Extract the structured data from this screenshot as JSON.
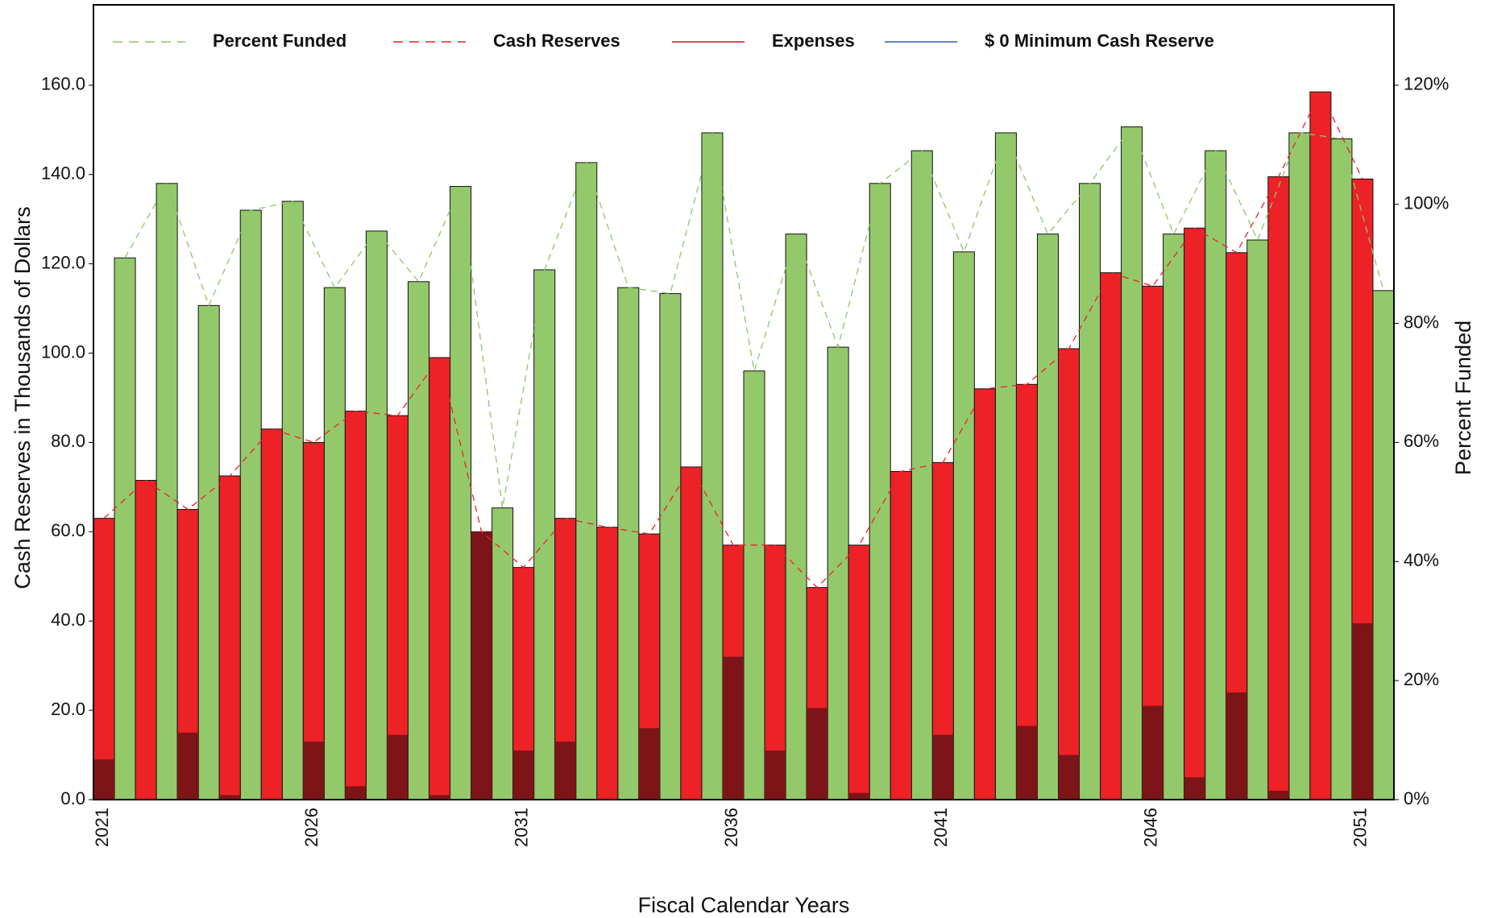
{
  "chart_data": {
    "type": "bar",
    "y_label": "Cash Reserves in Thousands of Dollars",
    "y2_label": "Percent Funded",
    "x_label": "Fiscal Calendar Years",
    "categories": [
      "2021",
      null,
      null,
      null,
      null,
      "2026",
      null,
      null,
      null,
      null,
      "2031",
      null,
      null,
      null,
      null,
      "2036",
      null,
      null,
      null,
      null,
      "2041",
      null,
      null,
      null,
      null,
      "2046",
      null,
      null,
      null,
      null,
      "2051"
    ],
    "series": [
      {
        "name": "Percent Funded",
        "color": "#94c96b",
        "line_color": "#8dc66a",
        "dashed": true,
        "axis": "y2",
        "values": [
          91,
          103.5,
          83,
          99,
          100.5,
          86,
          95.5,
          87,
          103,
          49,
          89,
          107,
          86,
          85,
          112,
          72,
          95,
          76,
          103.5,
          109,
          92,
          112,
          95,
          103.5,
          113,
          95,
          109,
          94,
          112,
          111,
          85.5
        ]
      },
      {
        "name": "Cash Reserves",
        "color": "#ec2227",
        "line_color": "#ec2227",
        "dashed": true,
        "values": [
          63,
          71.5,
          65,
          72.5,
          83,
          80,
          87,
          86,
          99,
          60,
          52,
          63,
          61,
          59.5,
          74.5,
          57,
          57,
          47.5,
          57,
          73.5,
          75.5,
          92,
          93,
          101,
          118,
          115,
          128,
          122.5,
          139.5,
          158.5,
          139
        ]
      },
      {
        "name": "Expenses",
        "color": "#7d1518",
        "line_color": "#c8151b",
        "dashed": false,
        "values": [
          9,
          0,
          15,
          1,
          0,
          13,
          3,
          14.5,
          1,
          60,
          11,
          13,
          0,
          16,
          0,
          32,
          11,
          20.5,
          1.5,
          0,
          14.5,
          0,
          16.5,
          10,
          0,
          21,
          5,
          24,
          2,
          0,
          39.5
        ]
      },
      {
        "name": "$ 0 Minimum Cash Reserve",
        "color": "#2f5fa9",
        "line_color": "#2f5fa9",
        "dashed": false,
        "values": [
          0,
          0,
          0,
          0,
          0,
          0,
          0,
          0,
          0,
          0,
          0,
          0,
          0,
          0,
          0,
          0,
          0,
          0,
          0,
          0,
          0,
          0,
          0,
          0,
          0,
          0,
          0,
          0,
          0,
          0,
          0
        ]
      }
    ],
    "ylim": [
      0,
      178
    ],
    "yticks": [
      {
        "value": 0,
        "label": "0.0"
      },
      {
        "value": 20,
        "label": "20.0"
      },
      {
        "value": 40,
        "label": "40.0"
      },
      {
        "value": 60,
        "label": "60.0"
      },
      {
        "value": 80,
        "label": "80.0"
      },
      {
        "value": 100,
        "label": "100.0"
      },
      {
        "value": 120,
        "label": "120.0"
      },
      {
        "value": 140,
        "label": "140.0"
      },
      {
        "value": 160,
        "label": "160.0"
      }
    ],
    "y2lim": [
      0,
      133.5
    ],
    "y2ticks": [
      {
        "value": 0,
        "label": "0%"
      },
      {
        "value": 20,
        "label": "20%"
      },
      {
        "value": 40,
        "label": "40%"
      },
      {
        "value": 60,
        "label": "60%"
      },
      {
        "value": 80,
        "label": "80%"
      },
      {
        "value": 100,
        "label": "100%"
      },
      {
        "value": 120,
        "label": "120%"
      }
    ]
  }
}
